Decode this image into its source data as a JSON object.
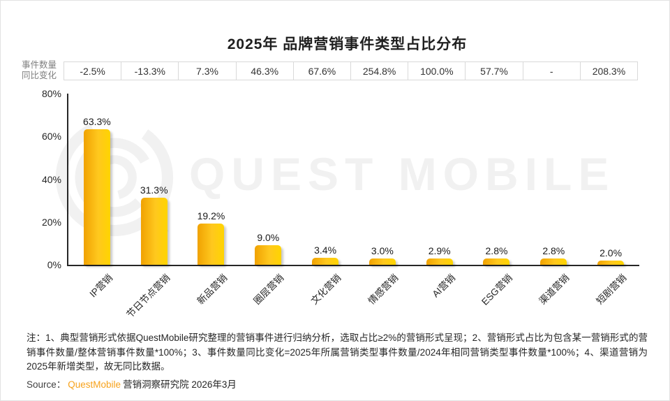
{
  "title": "2025年 品牌营销事件类型占比分布",
  "yoy_header": {
    "label_line1": "事件数量",
    "label_line2": "同比变化",
    "values": [
      "-2.5%",
      "-13.3%",
      "7.3%",
      "46.3%",
      "67.6%",
      "254.8%",
      "100.0%",
      "57.7%",
      "-",
      "208.3%"
    ]
  },
  "chart_data": {
    "type": "bar",
    "title": "2025年 品牌营销事件类型占比分布",
    "categories": [
      "IP营销",
      "节日节点营销",
      "新品营销",
      "圈层营销",
      "文化营销",
      "情感营销",
      "AI营销",
      "ESG营销",
      "渠道营销",
      "短剧营销"
    ],
    "values": [
      63.3,
      31.3,
      19.2,
      9.0,
      3.4,
      3.0,
      2.9,
      2.8,
      2.8,
      2.0
    ],
    "value_labels": [
      "63.3%",
      "31.3%",
      "19.2%",
      "9.0%",
      "3.4%",
      "3.0%",
      "2.9%",
      "2.8%",
      "2.8%",
      "2.0%"
    ],
    "yoy_change_labels": [
      "-2.5%",
      "-13.3%",
      "7.3%",
      "46.3%",
      "67.6%",
      "254.8%",
      "100.0%",
      "57.7%",
      "-",
      "208.3%"
    ],
    "ylabel": "事件数量同比变化",
    "ylim": [
      0,
      80
    ],
    "yticks": [
      "0%",
      "20%",
      "40%",
      "60%",
      "80%"
    ],
    "grid": "off",
    "legend": "none",
    "bar_gradient": [
      "#F0A202",
      "#FFC81E",
      "#FFD400"
    ]
  },
  "watermark": {
    "text": "QUEST MOBILE"
  },
  "notes": {
    "text": "注：1、典型营销形式依据QuestMobile研究整理的营销事件进行归纳分析，选取占比≥2%的营销形式呈现；2、营销形式占比为包含某一营销形式的营销事件数量/整体营销事件数量*100%；3、事件数量同比变化=2025年所属营销类型事件数量/2024年相同营销类型事件数量*100%；4、渠道营销为2025年新增类型，故无同比数据。"
  },
  "source": {
    "prefix": "Source：",
    "brand": "QuestMobile",
    "suffix": "营销洞察研究院 2026年3月",
    "brand_color": "#F7A21B"
  }
}
